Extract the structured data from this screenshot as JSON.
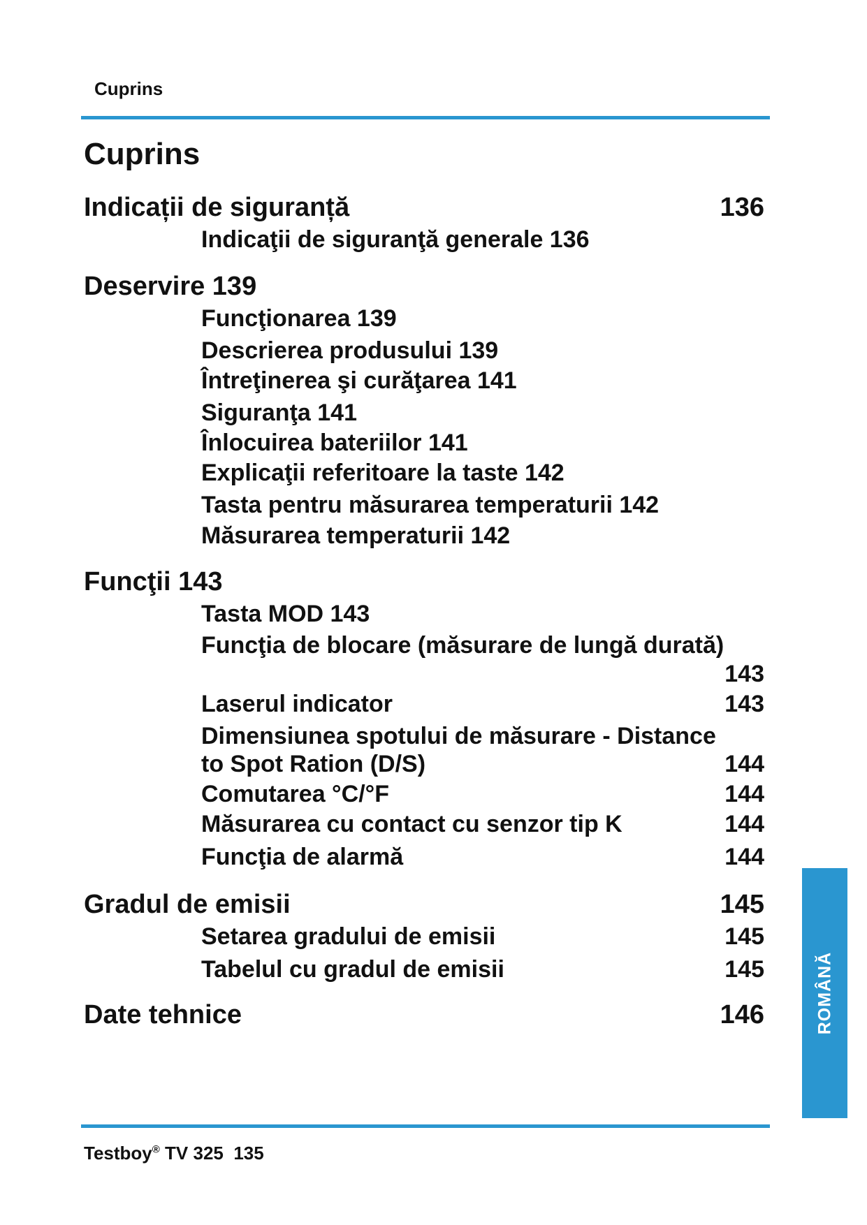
{
  "header": {
    "label": "Cuprins"
  },
  "title": "Cuprins",
  "toc": {
    "s1": {
      "label": "Indicații de siguranță",
      "page": "136"
    },
    "s1_1": "Indicaţii de siguranţă generale  136",
    "s2": "Deservire  139",
    "s2_1": "Funcţionarea  139",
    "s2_2": "Descrierea produsului  139",
    "s2_3": "Întreţinerea şi curăţarea  141",
    "s2_4": "Siguranţa  141",
    "s2_5": "Înlocuirea bateriilor  141",
    "s2_6": "Explicaţii referitoare la taste  142",
    "s2_7": "Tasta pentru măsurarea temperaturii  142",
    "s2_8": "Măsurarea temperaturii  142",
    "s3": "Funcţii  143",
    "s3_1": "Tasta MOD  143",
    "s3_2": {
      "label": "Funcţia de blocare (măsurare de lungă durată)",
      "page": "143"
    },
    "s3_3": {
      "label": "Laserul indicator",
      "page": "143"
    },
    "s3_4": {
      "label_line1": "Dimensiunea spotului de măsurare - Distance",
      "label_line2": "to Spot Ration (D/S)",
      "page": "144"
    },
    "s3_5": {
      "label": "Comutarea °C/°F",
      "page": "144"
    },
    "s3_6": {
      "label": "Măsurarea cu contact cu senzor tip K",
      "page": "144"
    },
    "s3_7": {
      "label": "Funcţia de alarmă",
      "page": "144"
    },
    "s4": {
      "label": "Gradul de emisii",
      "page": "145"
    },
    "s4_1": {
      "label": "Setarea gradului de emisii",
      "page": "145"
    },
    "s4_2": {
      "label": "Tabelul cu gradul de emisii",
      "page": "145"
    },
    "s5": {
      "label": "Date tehnice",
      "page": "146"
    }
  },
  "language_tab": "ROMÂNĂ",
  "footer": {
    "brand": "Testboy",
    "registered": "®",
    "model_page": " TV 325  135"
  },
  "colors": {
    "accent": "#2a96d0"
  }
}
